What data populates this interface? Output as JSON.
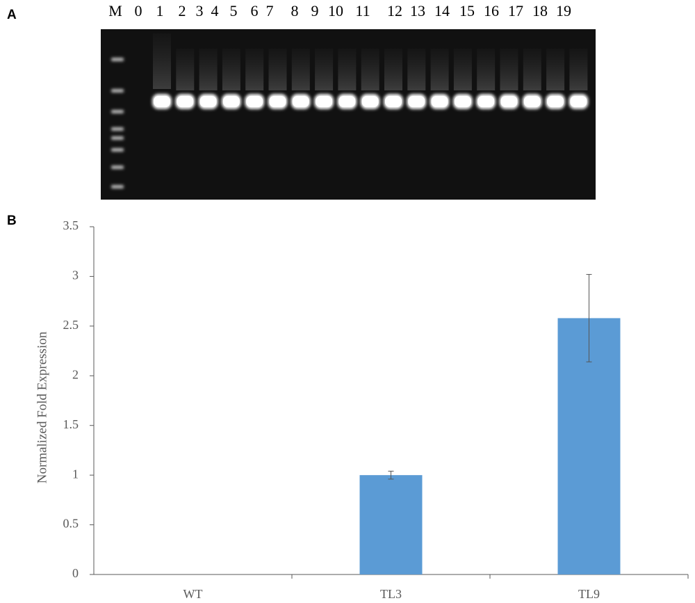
{
  "panels": {
    "a": "A",
    "b": "B"
  },
  "gel": {
    "lanes": [
      "M",
      "0",
      "1",
      "2",
      "3",
      "4",
      "5",
      "6",
      "7",
      "8",
      "9",
      "10",
      "11",
      "12",
      "13",
      "14",
      "15",
      "16",
      "17",
      "18",
      "19"
    ]
  },
  "chart_data": {
    "type": "bar",
    "y_label": "Normalized  Fold Expression",
    "categories": [
      "WT",
      "TL3",
      "TL9"
    ],
    "values": [
      0,
      1.0,
      2.58
    ],
    "errors": [
      0,
      0.04,
      0.44
    ],
    "color": "#5b9bd5",
    "ylim": [
      0,
      3.5
    ],
    "yticks": [
      0,
      0.5,
      1,
      1.5,
      2,
      2.5,
      3,
      3.5
    ],
    "grid": false
  }
}
